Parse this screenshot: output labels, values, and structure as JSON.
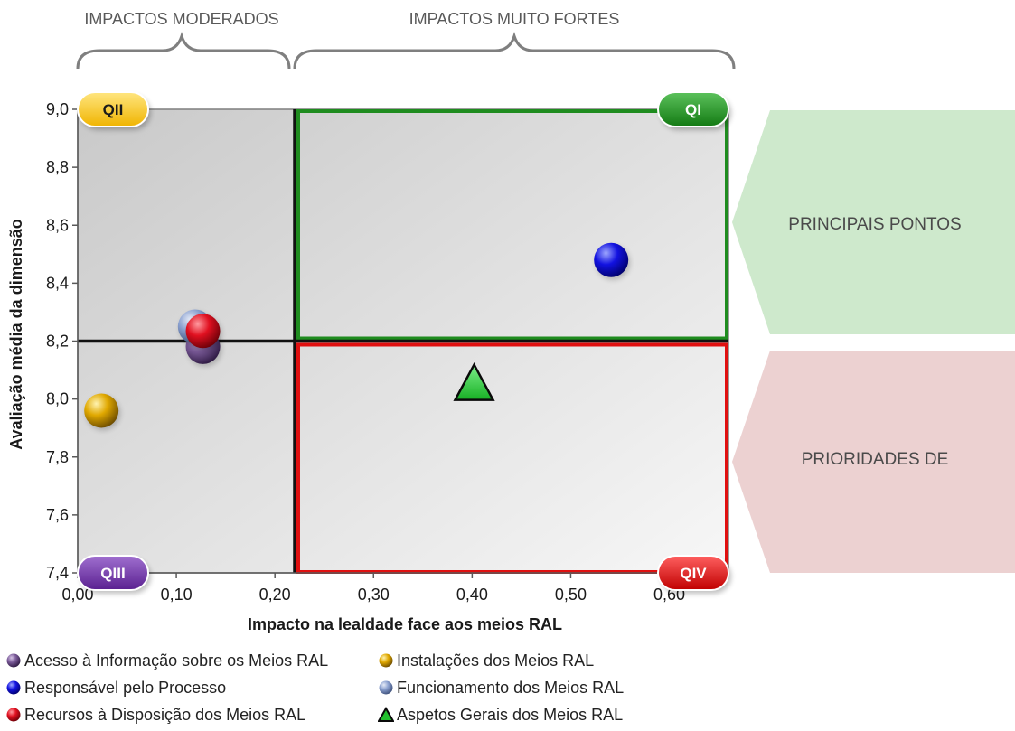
{
  "chart_data": {
    "type": "scatter",
    "xlabel": "Impacto na lealdade face aos meios RAL",
    "ylabel": "Avaliação média da dimensão",
    "xlim": [
      0,
      0.66
    ],
    "ylim": [
      7.4,
      9.0
    ],
    "x_ticks": [
      "0,00",
      "0,10",
      "0,20",
      "0,30",
      "0,40",
      "0,50",
      "0,60"
    ],
    "y_ticks": [
      "7,4",
      "7,6",
      "7,8",
      "8,0",
      "8,2",
      "8,4",
      "8,6",
      "8,8",
      "9,0"
    ],
    "grid": false,
    "legend_position": "bottom",
    "quadrant_split": {
      "x": 0.22,
      "y": 8.2
    },
    "quadrant_labels": [
      "QII",
      "QI",
      "QIII",
      "QIV"
    ],
    "top_braces": [
      "IMPACTOS MODERADOS",
      "IMPACTOS MUITO FORTES"
    ],
    "side_arrows": [
      "PRINCIPAIS PONTOS",
      "PRIORIDADES DE"
    ],
    "series": [
      {
        "name": "Acesso à Informação sobre os Meios RAL",
        "x": 0.127,
        "y": 8.18,
        "marker": "sphere",
        "color": "#6b4a8a"
      },
      {
        "name": "Instalações dos Meios RAL",
        "x": 0.024,
        "y": 7.96,
        "marker": "sphere",
        "color": "#d9a400"
      },
      {
        "name": "Responsável pelo Processo",
        "x": 0.541,
        "y": 8.48,
        "marker": "sphere",
        "color": "#1010d0"
      },
      {
        "name": "Funcionamento dos Meios RAL",
        "x": 0.119,
        "y": 8.25,
        "marker": "sphere",
        "color": "#7f96c6"
      },
      {
        "name": "Recursos à Disposição dos Meios RAL",
        "x": 0.127,
        "y": 8.235,
        "marker": "sphere",
        "color": "#d8101e"
      },
      {
        "name": "Aspetos Gerais dos Meios RAL",
        "x": 0.402,
        "y": 8.05,
        "marker": "triangle",
        "color": "#22c02e"
      }
    ],
    "colors": {
      "quadrant_I": "#1f8c1f",
      "quadrant_II": "#ffc000",
      "quadrant_III": "#7030a0",
      "quadrant_IV": "#e01010",
      "arrow_top": "#c9e8c9",
      "arrow_bottom": "#ebcfcf"
    }
  }
}
